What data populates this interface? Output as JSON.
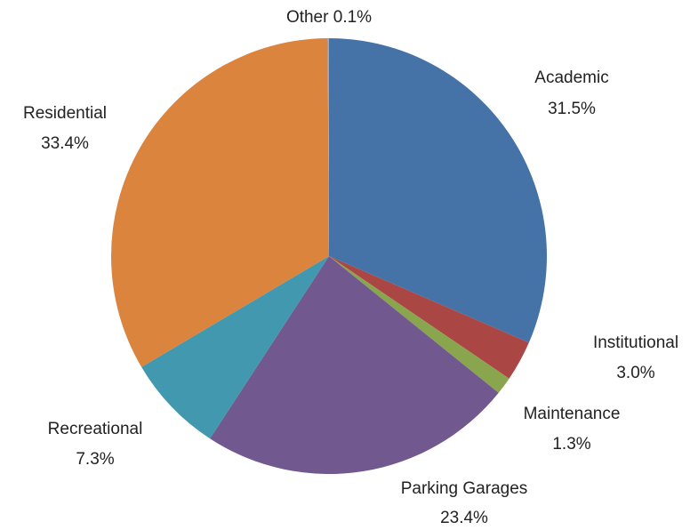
{
  "chart_data": {
    "type": "pie",
    "categories": [
      "Academic",
      "Institutional",
      "Maintenance",
      "Parking Garages",
      "Recreational",
      "Residential",
      "Other"
    ],
    "values": [
      31.5,
      3.0,
      1.3,
      23.4,
      7.3,
      33.4,
      0.1
    ],
    "value_labels": [
      "31.5%",
      "3.0%",
      "1.3%",
      "23.4%",
      "7.3%",
      "33.4%",
      "0.1%"
    ],
    "colors": [
      "#4572a7",
      "#aa4643",
      "#89a54e",
      "#71588f",
      "#4198af",
      "#db843d",
      "#93a9cf"
    ]
  }
}
